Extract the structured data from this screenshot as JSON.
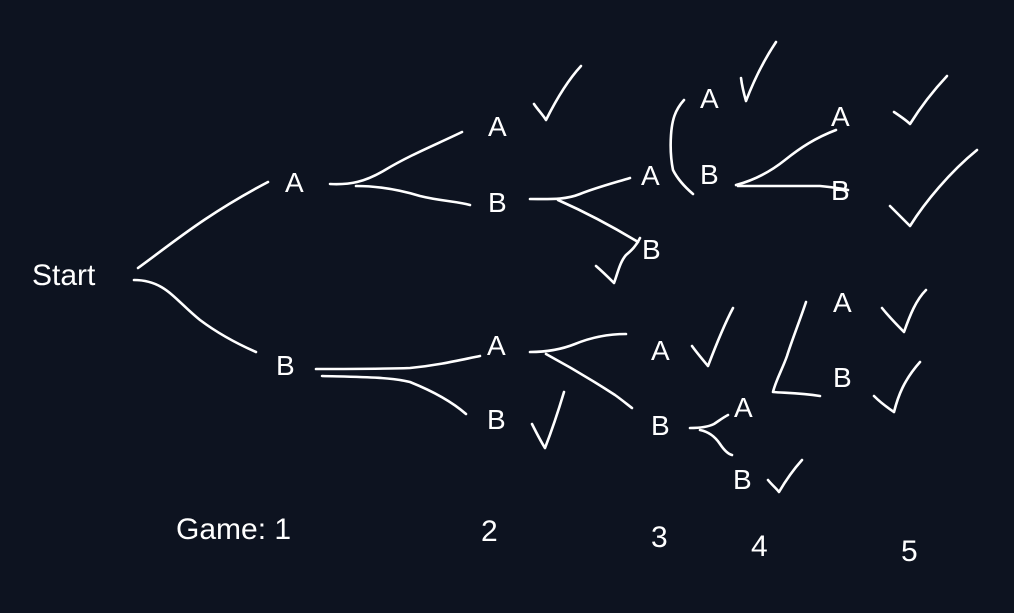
{
  "diagram": {
    "start_label": "Start",
    "game_labels": [
      "Game: 1",
      "2",
      "3",
      "4",
      "5"
    ],
    "nodes": {
      "g1_a": "A",
      "g1_b": "B",
      "g2_aa": "A",
      "g2_ab": "B",
      "g2_ba": "A",
      "g2_bb": "B",
      "g3_aba": "A",
      "g3_abb": "B",
      "g3_baa": "A",
      "g3_bab": "B",
      "g4_abaa": "A",
      "g4_abab": "B",
      "g4_baba": "A",
      "g4_babb": "B",
      "g5_ababa": "A",
      "g5_ababb": "B",
      "g5_babaa": "A",
      "g5_babab": "B"
    },
    "colors": {
      "background": "#0d1320",
      "ink": "#ffffff"
    }
  }
}
